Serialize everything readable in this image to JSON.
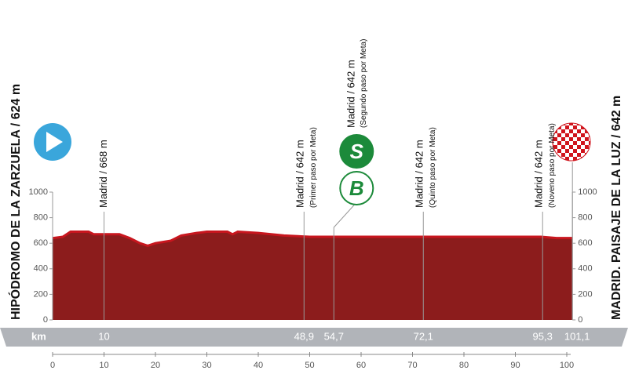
{
  "chart_data": {
    "type": "area",
    "color": "#8c1c1c",
    "line_color": "#c8161e",
    "x": [
      0,
      2,
      3.5,
      7,
      8,
      13,
      15,
      17,
      18.5,
      20,
      23,
      25,
      28,
      30,
      34,
      35,
      36,
      40,
      45,
      50,
      60,
      70,
      80,
      90,
      95,
      98,
      101.1
    ],
    "values": [
      640,
      650,
      690,
      690,
      670,
      670,
      640,
      600,
      580,
      600,
      620,
      660,
      680,
      690,
      690,
      670,
      690,
      680,
      660,
      650,
      650,
      650,
      650,
      650,
      650,
      640,
      640
    ],
    "xlim": [
      0,
      101.1
    ],
    "ylim": [
      0,
      1000
    ],
    "xticks": [
      0,
      10,
      20,
      30,
      40,
      50,
      60,
      70,
      80,
      90,
      100
    ],
    "yticks": [
      0,
      200,
      400,
      600,
      800,
      1000
    ],
    "km_label": "km",
    "start": {
      "label": "HIPÓDROMO DE LA ZARZUELA / 624 m"
    },
    "finish": {
      "label": "MADRID. PAISAJE DE LA LUZ / 642 m",
      "km": {
        "value": 101.1,
        "label": "101,1"
      }
    },
    "waypoints": [
      {
        "km": 10,
        "label": "Madrid / 668 m"
      },
      {
        "km": {
          "value": 48.9,
          "label": "48,9"
        },
        "label": "Madrid / 642 m",
        "note": "(Primer paso por Meta)"
      },
      {
        "km": {
          "value": 54.7,
          "label": "54,7"
        },
        "label": "Madrid / 642 m",
        "note": "(Segundo paso por Meta)",
        "icons": [
          "S",
          "B"
        ]
      },
      {
        "km": {
          "value": 72.1,
          "label": "72,1"
        },
        "label": "Madrid / 642 m",
        "note": "(Quinto paso por Meta)"
      },
      {
        "km": {
          "value": 95.3,
          "label": "95,3"
        },
        "label": "Madrid / 642 m",
        "note": "(Noveno paso por Meta)"
      }
    ]
  }
}
